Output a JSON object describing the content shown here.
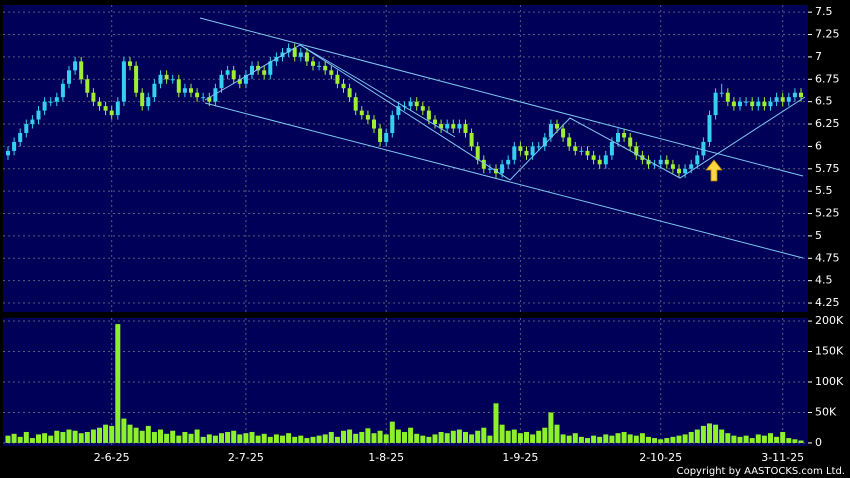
{
  "chart_data": [
    {
      "type": "candlestick",
      "categories": [
        null,
        null,
        null,
        null,
        null,
        null,
        null,
        null,
        null,
        null,
        null,
        null,
        null,
        null,
        null,
        null,
        null,
        "2-6-25",
        null,
        null,
        null,
        null,
        null,
        null,
        null,
        null,
        null,
        null,
        null,
        null,
        null,
        null,
        null,
        null,
        null,
        null,
        null,
        null,
        null,
        "2-7-25",
        null,
        null,
        null,
        null,
        null,
        null,
        null,
        null,
        null,
        null,
        null,
        null,
        null,
        null,
        null,
        null,
        null,
        null,
        null,
        null,
        null,
        null,
        "1-8-25",
        null,
        null,
        null,
        null,
        null,
        null,
        null,
        null,
        null,
        null,
        null,
        null,
        null,
        null,
        null,
        null,
        null,
        null,
        null,
        null,
        null,
        "1-9-25",
        null,
        null,
        null,
        null,
        null,
        null,
        null,
        null,
        null,
        null,
        null,
        null,
        null,
        null,
        null,
        null,
        null,
        null,
        null,
        null,
        null,
        null,
        "2-10-25",
        null,
        null,
        null,
        null,
        null,
        null,
        null,
        null,
        null,
        null,
        null,
        null,
        null,
        null,
        null,
        null,
        null,
        null,
        null,
        "3-11-25",
        null,
        null,
        null
      ],
      "open": [
        5.9,
        5.95,
        6.05,
        6.15,
        6.25,
        6.3,
        6.4,
        6.5,
        6.5,
        6.55,
        6.7,
        6.85,
        6.95,
        6.75,
        6.6,
        6.5,
        6.45,
        6.4,
        6.35,
        6.5,
        6.95,
        6.9,
        6.6,
        6.45,
        6.55,
        6.7,
        6.8,
        6.75,
        6.75,
        6.6,
        6.65,
        6.6,
        6.55,
        6.55,
        6.5,
        6.65,
        6.8,
        6.85,
        6.75,
        6.7,
        6.8,
        6.9,
        6.85,
        6.8,
        6.95,
        7.0,
        7.05,
        7.1,
        7.0,
        7.05,
        6.95,
        6.9,
        6.9,
        6.85,
        6.8,
        6.7,
        6.65,
        6.55,
        6.4,
        6.35,
        6.3,
        6.2,
        6.05,
        6.15,
        6.35,
        6.45,
        6.45,
        6.5,
        6.45,
        6.4,
        6.3,
        6.25,
        6.2,
        6.25,
        6.2,
        6.25,
        6.15,
        6.0,
        5.85,
        5.75,
        5.75,
        5.7,
        5.8,
        5.85,
        6.0,
        5.95,
        5.9,
        6.0,
        6.0,
        6.1,
        6.25,
        6.2,
        6.1,
        6.0,
        5.95,
        5.95,
        5.9,
        5.85,
        5.8,
        5.9,
        6.05,
        6.15,
        6.1,
        6.0,
        5.9,
        5.85,
        5.8,
        5.8,
        5.85,
        5.8,
        5.75,
        5.7,
        5.75,
        5.8,
        5.9,
        6.05,
        6.35,
        6.6,
        6.6,
        6.5,
        6.45,
        6.5,
        6.5,
        6.45,
        6.5,
        6.45,
        6.5,
        6.55,
        6.5,
        6.55,
        6.6
      ],
      "high": [
        6.0,
        6.1,
        6.2,
        6.3,
        6.35,
        6.45,
        6.55,
        6.55,
        6.6,
        6.75,
        6.9,
        7.0,
        7.0,
        6.8,
        6.65,
        6.55,
        6.5,
        6.45,
        6.55,
        7.0,
        7.0,
        6.95,
        6.65,
        6.6,
        6.75,
        6.85,
        6.85,
        6.8,
        6.8,
        6.7,
        6.7,
        6.65,
        6.6,
        6.6,
        6.7,
        6.85,
        6.9,
        6.9,
        6.8,
        6.85,
        6.95,
        6.95,
        6.9,
        7.0,
        7.05,
        7.1,
        7.15,
        7.15,
        7.1,
        7.1,
        7.0,
        6.95,
        6.95,
        6.9,
        6.85,
        6.75,
        6.7,
        6.6,
        6.45,
        6.4,
        6.35,
        6.25,
        6.2,
        6.4,
        6.5,
        6.5,
        6.55,
        6.55,
        6.5,
        6.45,
        6.35,
        6.3,
        6.3,
        6.3,
        6.3,
        6.3,
        6.2,
        6.05,
        5.9,
        5.8,
        5.8,
        5.85,
        5.9,
        6.05,
        6.05,
        6.0,
        6.05,
        6.05,
        6.15,
        6.3,
        6.3,
        6.25,
        6.15,
        6.05,
        6.0,
        6.0,
        5.95,
        5.9,
        5.95,
        6.1,
        6.2,
        6.2,
        6.15,
        6.05,
        5.95,
        5.9,
        5.85,
        5.9,
        5.9,
        5.85,
        5.8,
        5.8,
        5.85,
        5.95,
        6.1,
        6.4,
        6.65,
        6.7,
        6.65,
        6.55,
        6.55,
        6.55,
        6.55,
        6.55,
        6.55,
        6.55,
        6.6,
        6.6,
        6.6,
        6.65,
        6.65
      ],
      "low": [
        5.85,
        5.9,
        6.0,
        6.1,
        6.2,
        6.25,
        6.35,
        6.45,
        6.45,
        6.5,
        6.65,
        6.8,
        6.7,
        6.55,
        6.45,
        6.4,
        6.35,
        6.3,
        6.3,
        6.45,
        6.85,
        6.55,
        6.4,
        6.4,
        6.5,
        6.65,
        6.7,
        6.7,
        6.55,
        6.55,
        6.55,
        6.5,
        6.5,
        6.45,
        6.45,
        6.6,
        6.75,
        6.7,
        6.65,
        6.65,
        6.75,
        6.8,
        6.75,
        6.75,
        6.9,
        6.95,
        7.0,
        6.95,
        6.95,
        6.9,
        6.85,
        6.85,
        6.8,
        6.75,
        6.65,
        6.6,
        6.5,
        6.35,
        6.3,
        6.25,
        6.15,
        6.0,
        6.0,
        6.1,
        6.3,
        6.4,
        6.4,
        6.4,
        6.35,
        6.25,
        6.2,
        6.15,
        6.15,
        6.15,
        6.15,
        6.1,
        5.95,
        5.8,
        5.7,
        5.7,
        5.65,
        5.65,
        5.75,
        5.8,
        5.9,
        5.85,
        5.85,
        5.95,
        5.95,
        6.05,
        6.15,
        6.05,
        5.95,
        5.9,
        5.9,
        5.85,
        5.8,
        5.75,
        5.75,
        5.85,
        6.0,
        6.05,
        5.95,
        5.85,
        5.8,
        5.75,
        5.75,
        5.75,
        5.75,
        5.7,
        5.65,
        5.65,
        5.7,
        5.75,
        5.85,
        6.0,
        6.3,
        6.55,
        6.45,
        6.4,
        6.4,
        6.45,
        6.4,
        6.4,
        6.4,
        6.4,
        6.45,
        6.45,
        6.45,
        6.5,
        6.5
      ],
      "close": [
        5.95,
        6.05,
        6.15,
        6.25,
        6.3,
        6.4,
        6.5,
        6.5,
        6.55,
        6.7,
        6.85,
        6.95,
        6.75,
        6.6,
        6.5,
        6.45,
        6.4,
        6.35,
        6.5,
        6.95,
        6.9,
        6.6,
        6.45,
        6.55,
        6.7,
        6.8,
        6.75,
        6.75,
        6.6,
        6.65,
        6.6,
        6.55,
        6.55,
        6.5,
        6.65,
        6.8,
        6.85,
        6.75,
        6.7,
        6.8,
        6.9,
        6.85,
        6.8,
        6.95,
        7.0,
        7.05,
        7.1,
        7.0,
        7.05,
        6.95,
        6.9,
        6.9,
        6.85,
        6.8,
        6.7,
        6.65,
        6.55,
        6.4,
        6.35,
        6.3,
        6.2,
        6.05,
        6.15,
        6.35,
        6.45,
        6.45,
        6.5,
        6.45,
        6.4,
        6.3,
        6.25,
        6.2,
        6.25,
        6.2,
        6.25,
        6.15,
        6.0,
        5.85,
        5.75,
        5.75,
        5.7,
        5.8,
        5.85,
        6.0,
        5.95,
        5.9,
        6.0,
        6.0,
        6.1,
        6.25,
        6.2,
        6.1,
        6.0,
        5.95,
        5.95,
        5.9,
        5.85,
        5.8,
        5.9,
        6.05,
        6.15,
        6.1,
        6.0,
        5.9,
        5.85,
        5.8,
        5.8,
        5.85,
        5.8,
        5.75,
        5.7,
        5.75,
        5.8,
        5.9,
        6.05,
        6.35,
        6.6,
        6.6,
        6.5,
        6.45,
        6.5,
        6.5,
        6.45,
        6.5,
        6.45,
        6.5,
        6.55,
        6.5,
        6.55,
        6.6,
        6.55
      ],
      "up_color": "#33d0f0",
      "down_color": "#a0ee33",
      "ylim": [
        4.15,
        7.58
      ],
      "yticks": [
        4.25,
        4.5,
        4.75,
        5,
        5.25,
        5.5,
        5.75,
        6,
        6.25,
        6.5,
        6.75,
        7,
        7.25,
        7.5
      ],
      "grid": true
    },
    {
      "type": "bar",
      "values": [
        12000,
        15000,
        10000,
        18000,
        8000,
        14000,
        16000,
        12000,
        20000,
        18000,
        22000,
        20000,
        16000,
        18000,
        22000,
        25000,
        30000,
        28000,
        195000,
        40000,
        30000,
        25000,
        20000,
        28000,
        18000,
        22000,
        15000,
        20000,
        12000,
        18000,
        15000,
        22000,
        10000,
        14000,
        12000,
        16000,
        18000,
        20000,
        14000,
        16000,
        18000,
        12000,
        15000,
        10000,
        14000,
        12000,
        16000,
        10000,
        12000,
        8000,
        10000,
        12000,
        14000,
        18000,
        10000,
        20000,
        22000,
        15000,
        18000,
        24000,
        16000,
        20000,
        14000,
        35000,
        22000,
        18000,
        25000,
        15000,
        12000,
        10000,
        14000,
        18000,
        16000,
        20000,
        22000,
        18000,
        14000,
        20000,
        25000,
        12000,
        65000,
        30000,
        20000,
        22000,
        16000,
        18000,
        14000,
        20000,
        25000,
        50000,
        30000,
        14000,
        12000,
        16000,
        10000,
        8000,
        12000,
        10000,
        14000,
        12000,
        16000,
        18000,
        14000,
        12000,
        16000,
        10000,
        8000,
        6000,
        8000,
        10000,
        12000,
        14000,
        18000,
        22000,
        28000,
        32000,
        30000,
        22000,
        16000,
        12000,
        10000,
        12000,
        8000,
        14000,
        12000,
        16000,
        10000,
        18000,
        8000,
        6000,
        4000
      ],
      "color": "#8cf02a",
      "ylim": [
        -5000,
        205000
      ],
      "yticks": [
        0,
        {
          "value": 50000,
          "label": "50K"
        },
        {
          "value": 100000,
          "label": "100K"
        },
        {
          "value": 150000,
          "label": "150K"
        },
        {
          "value": 200000,
          "label": "200K"
        }
      ],
      "grid": true
    }
  ],
  "copyright": "Copyright by AASTOCKS.com Ltd."
}
